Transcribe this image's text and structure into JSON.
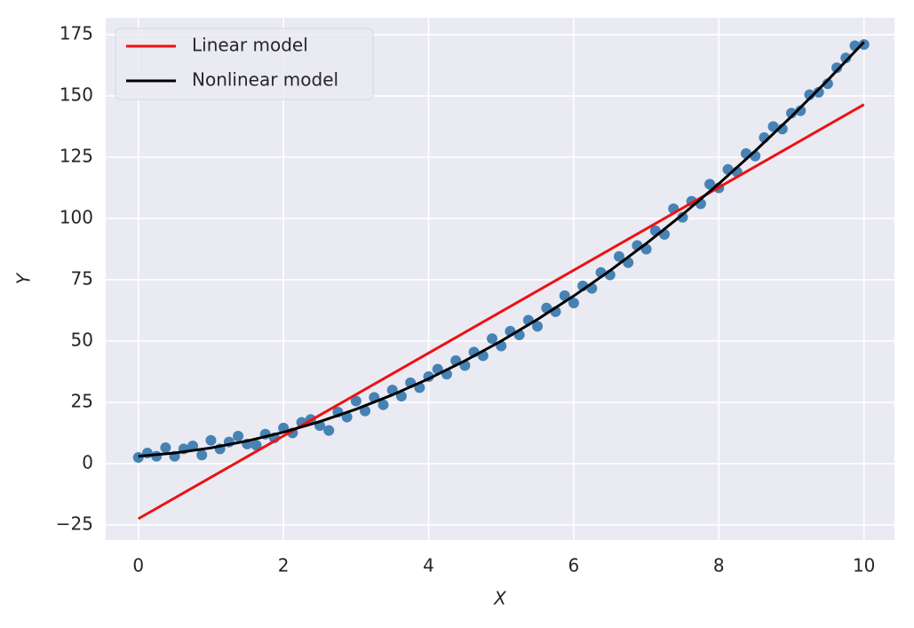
{
  "chart_data": {
    "type": "scatter",
    "x_label": "X",
    "y_label": "Y",
    "xlim": [
      -0.45,
      10.42
    ],
    "ylim": [
      -31.2,
      181.9
    ],
    "xticks": [
      0,
      2,
      4,
      6,
      8,
      10
    ],
    "yticks": [
      {
        "value": -25,
        "label": "−25"
      },
      0,
      25,
      50,
      75,
      100,
      125,
      150,
      175
    ],
    "grid": true,
    "legend": "upper left",
    "points": {
      "color": "#4682b4",
      "x": [
        0.0,
        0.125,
        0.25,
        0.375,
        0.5,
        0.625,
        0.75,
        0.875,
        1.0,
        1.125,
        1.25,
        1.375,
        1.5,
        1.625,
        1.75,
        1.875,
        2.0,
        2.125,
        2.25,
        2.375,
        2.5,
        2.625,
        2.75,
        2.875,
        3.0,
        3.125,
        3.25,
        3.375,
        3.5,
        3.625,
        3.75,
        3.875,
        4.0,
        4.125,
        4.25,
        4.375,
        4.5,
        4.625,
        4.75,
        4.875,
        5.0,
        5.125,
        5.25,
        5.375,
        5.5,
        5.625,
        5.75,
        5.875,
        6.0,
        6.125,
        6.25,
        6.375,
        6.5,
        6.625,
        6.75,
        6.875,
        7.0,
        7.125,
        7.25,
        7.375,
        7.5,
        7.625,
        7.75,
        7.875,
        8.0,
        8.125,
        8.25,
        8.375,
        8.5,
        8.625,
        8.75,
        8.875,
        9.0,
        9.125,
        9.25,
        9.375,
        9.5,
        9.625,
        9.75,
        9.875,
        10.0
      ],
      "y": [
        2.5,
        4.3,
        3.0,
        6.5,
        3.0,
        6.0,
        7.2,
        3.5,
        9.5,
        6.0,
        8.8,
        11.2,
        8.0,
        7.5,
        12.0,
        10.5,
        14.5,
        12.5,
        16.8,
        18.0,
        15.5,
        13.5,
        21.0,
        19.0,
        25.5,
        21.5,
        27.0,
        24.0,
        30.0,
        27.5,
        33.0,
        31.0,
        35.5,
        38.5,
        36.5,
        42.0,
        40.0,
        45.5,
        44.0,
        51.0,
        48.0,
        54.0,
        52.5,
        58.5,
        56.0,
        63.5,
        62.0,
        68.5,
        65.5,
        72.5,
        71.5,
        78.0,
        77.0,
        84.5,
        82.0,
        89.0,
        87.5,
        95.0,
        93.5,
        104.0,
        100.5,
        107.0,
        106.0,
        114.0,
        112.5,
        120.0,
        119.0,
        126.5,
        125.5,
        133.0,
        137.5,
        136.5,
        143.0,
        144.0,
        150.5,
        151.5,
        155.0,
        161.5,
        165.5,
        170.5,
        171.0
      ]
    },
    "lines": [
      {
        "name": "Linear model",
        "color": "#ee1111",
        "x": [
          0,
          10
        ],
        "values": [
          -22.5,
          146.5
        ]
      },
      {
        "name": "Nonlinear model",
        "color": "#000000",
        "x": [
          0,
          0.5,
          1,
          1.5,
          2,
          2.5,
          3,
          3.5,
          4,
          4.5,
          5,
          5.5,
          6,
          6.5,
          7,
          7.5,
          8,
          8.5,
          9,
          9.5,
          10
        ],
        "values": [
          3,
          4.33,
          6.4,
          9.23,
          12.8,
          17.13,
          22.2,
          28.03,
          34.6,
          41.93,
          50,
          58.83,
          68.4,
          78.73,
          89.8,
          101.63,
          114.2,
          127.53,
          141.6,
          156.43,
          172
        ]
      }
    ]
  }
}
